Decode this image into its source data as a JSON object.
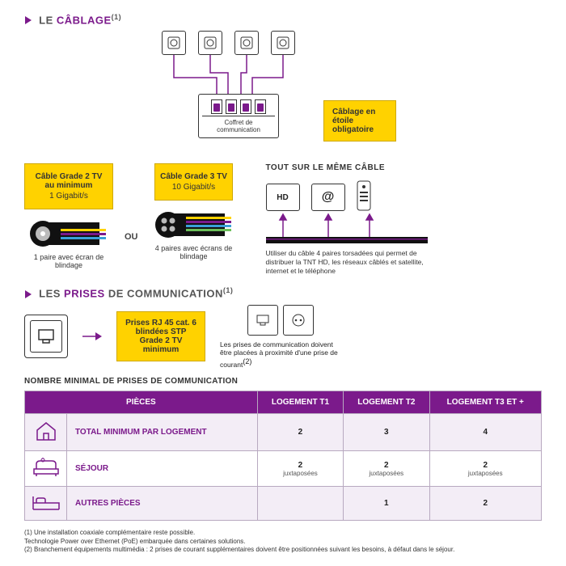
{
  "colors": {
    "accent": "#7b1a8b",
    "yellow": "#ffd200",
    "text": "#333333",
    "border": "#333333",
    "tableHeader": "#7b1a8b",
    "tableBorder": "#b8a9c0",
    "tableAlt": "#f3edf6"
  },
  "section1": {
    "prefix": "LE ",
    "accent": "CÂBLAGE",
    "sup": "(1)",
    "hubLabel": "Coffret de communication",
    "starBox": "Câblage en étoile obligatoire",
    "sockets": {
      "count": 4,
      "x": [
        100,
        145,
        190,
        235
      ]
    }
  },
  "cables": {
    "left": {
      "title": "Câble Grade 2 TV au minimum",
      "rate": "1 Gigabit/s",
      "caption": "1 paire avec écran de blindage",
      "pairs": 1
    },
    "ou": "OU",
    "right": {
      "title": "Câble Grade 3 TV",
      "rate": "10 Gigabit/s",
      "caption": "4 paires avec écrans de blindage",
      "pairs": 4
    },
    "side": {
      "title": "TOUT SUR LE MÊME CÂBLE",
      "icons": [
        "HD",
        "@",
        "remote"
      ],
      "desc": "Utiliser du câble 4 paires torsadées qui permet de distribuer la TNT HD, les réseaux câblés et satellite, internet et le téléphone"
    }
  },
  "section2": {
    "prefix": "LES ",
    "accent": "PRISES",
    "suffix": " DE COMMUNICATION",
    "sup": "(1)"
  },
  "prises": {
    "yellow": "Prises RJ 45 cat. 6 blindées STP Grade 2 TV minimum",
    "desc": "Les prises de communication doivent être placées à proximité d'une prise de courant",
    "descSup": "(2)"
  },
  "table": {
    "title": "NOMBRE MINIMAL DE PRISES DE COMMUNICATION",
    "headers": [
      "PIÈCES",
      "LOGEMENT T1",
      "LOGEMENT T2",
      "LOGEMENT T3 ET +"
    ],
    "rows": [
      {
        "icon": "house",
        "label": "TOTAL MINIMUM PAR LOGEMENT",
        "cells": [
          "2",
          "3",
          "4"
        ]
      },
      {
        "icon": "sofa",
        "label": "SÉJOUR",
        "cells": [
          "2",
          "2",
          "2"
        ],
        "sub": "juxtaposées"
      },
      {
        "icon": "bed",
        "label": "AUTRES PIÈCES",
        "cells": [
          "",
          "1",
          "2"
        ]
      }
    ]
  },
  "footnotes": [
    "(1) Une installation coaxiale complémentaire reste possible.",
    "Technologie Power over Ethernet (PoE) embarquée dans certaines solutions.",
    "(2) Branchement équipements multimédia : 2 prises de courant supplémentaires doivent être positionnées suivant les besoins, à défaut dans le séjour."
  ]
}
